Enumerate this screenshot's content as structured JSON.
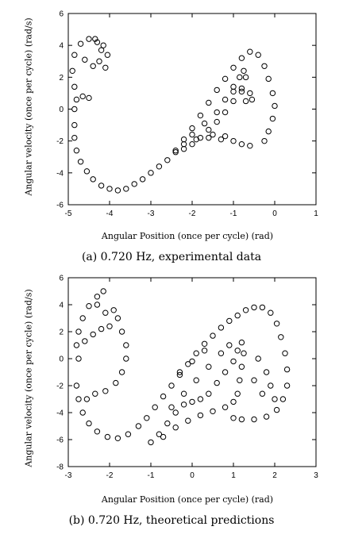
{
  "chart_data": [
    {
      "type": "scatter",
      "caption": "(a) 0.720 Hz, experimental data",
      "xlabel": "Angular Position (once per cycle) (rad)",
      "ylabel": "Angular velocity (once per cycle) (rad/s)",
      "xlim": [
        -5,
        1
      ],
      "ylim": [
        -6,
        6
      ],
      "xticks": [
        -5,
        -4,
        -3,
        -2,
        -1,
        0,
        1
      ],
      "yticks": [
        -6,
        -4,
        -2,
        0,
        2,
        4,
        6
      ],
      "grid": false,
      "marker": "open-circle",
      "series": [
        {
          "points": [
            [
              -4.85,
              -1.0
            ],
            [
              -4.85,
              -1.8
            ],
            [
              -4.8,
              -2.6
            ],
            [
              -4.7,
              -3.3
            ],
            [
              -4.55,
              -3.9
            ],
            [
              -4.4,
              -4.4
            ],
            [
              -4.2,
              -4.8
            ],
            [
              -4.0,
              -5.0
            ],
            [
              -3.8,
              -5.1
            ],
            [
              -3.6,
              -5.0
            ],
            [
              -3.4,
              -4.7
            ],
            [
              -3.2,
              -4.4
            ],
            [
              -3.0,
              -4.0
            ],
            [
              -2.8,
              -3.6
            ],
            [
              -2.6,
              -3.2
            ],
            [
              -2.4,
              -2.6
            ],
            [
              -2.2,
              -1.9
            ],
            [
              -2.0,
              -1.2
            ],
            [
              -1.8,
              -0.4
            ],
            [
              -1.6,
              0.4
            ],
            [
              -1.4,
              1.2
            ],
            [
              -1.2,
              1.9
            ],
            [
              -1.0,
              2.6
            ],
            [
              -0.8,
              3.2
            ],
            [
              -0.6,
              3.6
            ],
            [
              -0.4,
              3.4
            ],
            [
              -0.25,
              2.7
            ],
            [
              -0.15,
              1.9
            ],
            [
              -0.05,
              1.0
            ],
            [
              0.0,
              0.2
            ],
            [
              -0.05,
              -0.6
            ],
            [
              -0.15,
              -1.4
            ],
            [
              -0.25,
              -2.0
            ],
            [
              -4.85,
              0.0
            ],
            [
              -4.8,
              0.6
            ],
            [
              -4.65,
              0.8
            ],
            [
              -4.5,
              0.7
            ],
            [
              -4.85,
              1.4
            ],
            [
              -4.9,
              2.4
            ],
            [
              -4.85,
              3.4
            ],
            [
              -4.7,
              4.1
            ],
            [
              -4.5,
              4.4
            ],
            [
              -4.3,
              4.2
            ],
            [
              -4.2,
              3.7
            ],
            [
              -4.25,
              3.0
            ],
            [
              -4.4,
              2.7
            ],
            [
              -4.6,
              3.1
            ],
            [
              -4.1,
              2.6
            ],
            [
              -4.05,
              3.4
            ],
            [
              -4.15,
              4.0
            ],
            [
              -4.35,
              4.4
            ],
            [
              -2.4,
              -2.7
            ],
            [
              -2.2,
              -2.2
            ],
            [
              -2.0,
              -1.6
            ],
            [
              -1.7,
              -0.9
            ],
            [
              -1.4,
              -0.2
            ],
            [
              -1.2,
              0.6
            ],
            [
              -1.0,
              1.4
            ],
            [
              -0.85,
              2.0
            ],
            [
              -0.75,
              2.4
            ],
            [
              -0.7,
              2.0
            ],
            [
              -0.8,
              1.3
            ],
            [
              -1.0,
              0.5
            ],
            [
              -1.2,
              -0.2
            ],
            [
              -1.4,
              -0.8
            ],
            [
              -1.6,
              -1.3
            ],
            [
              -1.8,
              -1.8
            ],
            [
              -2.0,
              -2.2
            ],
            [
              -2.2,
              -2.5
            ],
            [
              -1.0,
              1.1
            ],
            [
              -0.8,
              1.1
            ],
            [
              -0.6,
              1.0
            ],
            [
              -0.55,
              0.6
            ],
            [
              -0.7,
              0.5
            ],
            [
              -1.9,
              -1.9
            ],
            [
              -1.6,
              -1.8
            ],
            [
              -1.3,
              -1.9
            ],
            [
              -1.0,
              -2.0
            ],
            [
              -0.8,
              -2.2
            ],
            [
              -0.6,
              -2.3
            ],
            [
              -1.5,
              -1.6
            ],
            [
              -1.2,
              -1.7
            ]
          ]
        }
      ]
    },
    {
      "type": "scatter",
      "caption": "(b) 0.720 Hz, theoretical predictions",
      "xlabel": "Angular Position (once per cycle) (rad)",
      "ylabel": "Angular velocity (once per cycle) (rad/s)",
      "xlim": [
        -3,
        3
      ],
      "ylim": [
        -8,
        6
      ],
      "xticks": [
        -3,
        -2,
        -1,
        0,
        1,
        2,
        3
      ],
      "yticks": [
        -8,
        -6,
        -4,
        -2,
        0,
        2,
        4,
        6
      ],
      "grid": false,
      "marker": "open-circle",
      "series": [
        {
          "points": [
            [
              -2.8,
              -2.0
            ],
            [
              -2.75,
              -3.0
            ],
            [
              -2.65,
              -4.0
            ],
            [
              -2.5,
              -4.8
            ],
            [
              -2.3,
              -5.4
            ],
            [
              -2.05,
              -5.8
            ],
            [
              -1.8,
              -5.9
            ],
            [
              -1.55,
              -5.6
            ],
            [
              -1.3,
              -5.0
            ],
            [
              -1.1,
              -4.4
            ],
            [
              -0.9,
              -3.6
            ],
            [
              -0.7,
              -2.8
            ],
            [
              -0.5,
              -2.0
            ],
            [
              -0.3,
              -1.2
            ],
            [
              -0.1,
              -0.4
            ],
            [
              0.1,
              0.4
            ],
            [
              0.3,
              1.1
            ],
            [
              0.5,
              1.7
            ],
            [
              0.7,
              2.3
            ],
            [
              0.9,
              2.8
            ],
            [
              1.1,
              3.2
            ],
            [
              1.3,
              3.6
            ],
            [
              1.5,
              3.8
            ],
            [
              1.7,
              3.8
            ],
            [
              1.9,
              3.4
            ],
            [
              2.05,
              2.6
            ],
            [
              2.15,
              1.6
            ],
            [
              2.25,
              0.4
            ],
            [
              2.3,
              -0.8
            ],
            [
              2.3,
              -2.0
            ],
            [
              2.2,
              -3.0
            ],
            [
              2.05,
              -3.8
            ],
            [
              1.8,
              -4.3
            ],
            [
              1.5,
              -4.5
            ],
            [
              1.2,
              -4.5
            ],
            [
              1.0,
              -4.4
            ],
            [
              -2.75,
              0.0
            ],
            [
              -2.8,
              1.0
            ],
            [
              -2.75,
              2.0
            ],
            [
              -2.65,
              3.0
            ],
            [
              -2.5,
              3.9
            ],
            [
              -2.3,
              4.6
            ],
            [
              -2.15,
              5.0
            ],
            [
              -2.3,
              4.0
            ],
            [
              -2.1,
              3.4
            ],
            [
              -1.9,
              3.6
            ],
            [
              -1.8,
              3.0
            ],
            [
              -1.7,
              2.0
            ],
            [
              -1.6,
              1.0
            ],
            [
              -1.6,
              0.0
            ],
            [
              -1.7,
              -1.0
            ],
            [
              -1.85,
              -1.8
            ],
            [
              -2.1,
              -2.4
            ],
            [
              -2.35,
              -2.6
            ],
            [
              -2.55,
              -3.0
            ],
            [
              -2.6,
              1.3
            ],
            [
              -2.4,
              1.8
            ],
            [
              -2.2,
              2.2
            ],
            [
              -2.0,
              2.4
            ],
            [
              -1.0,
              -6.2
            ],
            [
              -0.8,
              -5.6
            ],
            [
              -0.6,
              -4.8
            ],
            [
              -0.4,
              -4.0
            ],
            [
              -0.2,
              -3.4
            ],
            [
              0.0,
              -3.2
            ],
            [
              0.2,
              -3.0
            ],
            [
              0.4,
              -2.6
            ],
            [
              0.6,
              -1.8
            ],
            [
              0.8,
              -1.0
            ],
            [
              1.0,
              -0.2
            ],
            [
              1.1,
              0.6
            ],
            [
              1.2,
              1.2
            ],
            [
              1.25,
              0.4
            ],
            [
              1.2,
              -0.6
            ],
            [
              1.15,
              -1.6
            ],
            [
              1.1,
              -2.6
            ],
            [
              1.0,
              -3.2
            ],
            [
              0.8,
              -3.6
            ],
            [
              0.5,
              -3.9
            ],
            [
              0.2,
              -4.2
            ],
            [
              -0.1,
              -4.6
            ],
            [
              -0.4,
              -5.1
            ],
            [
              -0.7,
              -5.8
            ],
            [
              -0.5,
              -3.6
            ],
            [
              -0.2,
              -2.6
            ],
            [
              0.1,
              -1.6
            ],
            [
              0.4,
              -0.6
            ],
            [
              0.7,
              0.4
            ],
            [
              0.9,
              1.0
            ],
            [
              0.3,
              0.6
            ],
            [
              0.0,
              -0.2
            ],
            [
              -0.3,
              -1.0
            ],
            [
              1.6,
              0.0
            ],
            [
              1.8,
              -1.0
            ],
            [
              1.9,
              -2.0
            ],
            [
              2.0,
              -3.0
            ],
            [
              1.7,
              -2.6
            ],
            [
              1.5,
              -1.6
            ]
          ]
        }
      ]
    }
  ]
}
